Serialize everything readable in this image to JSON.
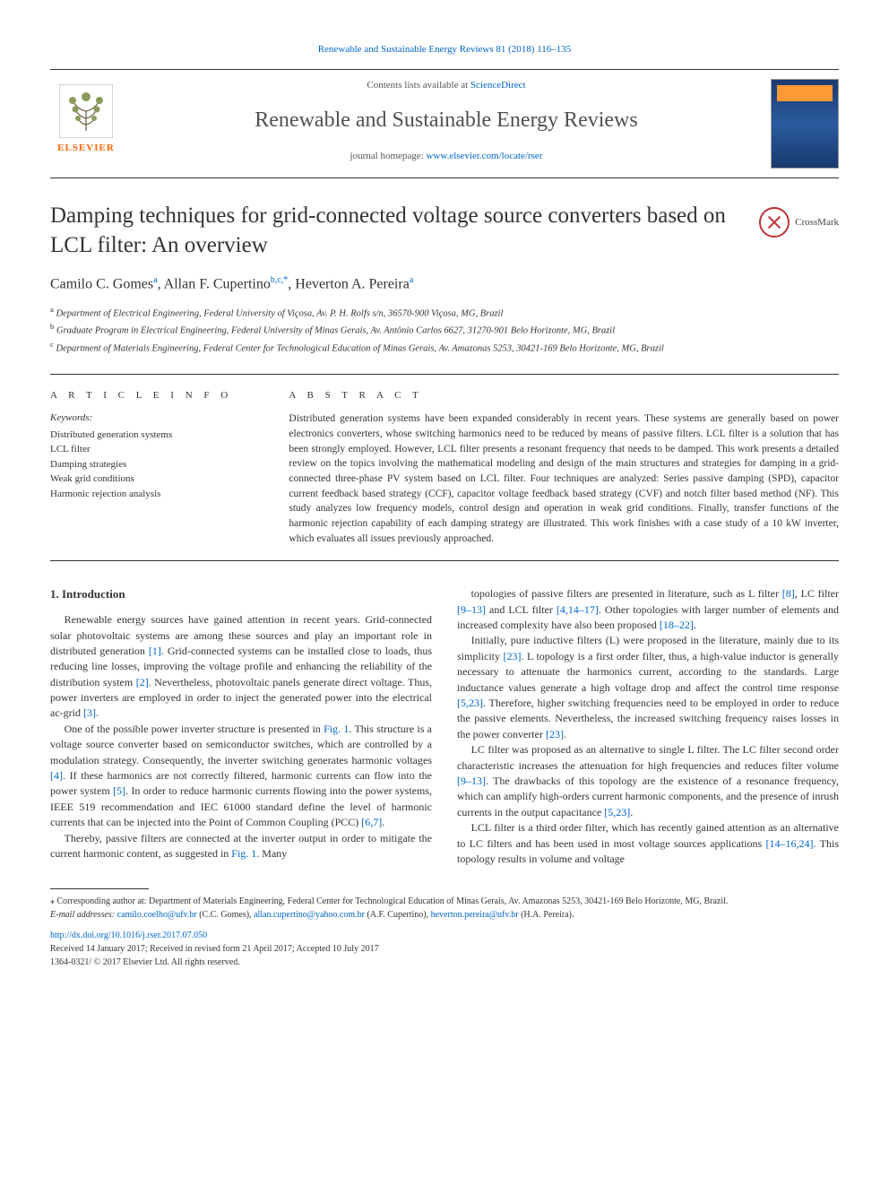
{
  "colors": {
    "link": "#0066cc",
    "text": "#333333",
    "elsevier_orange": "#ff6600",
    "crossmark_red": "#bb3333",
    "background": "#ffffff"
  },
  "typography": {
    "body_family": "Georgia, 'Times New Roman', serif",
    "title_size_pt": 25,
    "journal_size_pt": 24,
    "authors_size_pt": 16,
    "body_size_pt": 12,
    "abstract_size_pt": 11.5,
    "footnote_size_pt": 10
  },
  "header": {
    "citation": "Renewable and Sustainable Energy Reviews 81 (2018) 116–135",
    "contents_prefix": "Contents lists available at ",
    "contents_link": "ScienceDirect",
    "journal_name": "Renewable and Sustainable Energy Reviews",
    "homepage_prefix": "journal homepage: ",
    "homepage_link": "www.elsevier.com/locate/rser",
    "publisher_label": "ELSEVIER"
  },
  "crossmark": {
    "label": "CrossMark"
  },
  "article": {
    "title": "Damping techniques for grid-connected voltage source converters based on LCL filter: An overview",
    "authors_html": "Camilo C. Gomes<sup>a</sup>, Allan F. Cupertino<sup>b,c,*</sup>, Heverton A. Pereira<sup>a</sup>",
    "affiliations": [
      {
        "sup": "a",
        "text": "Department of Electrical Engineering, Federal University of Viçosa, Av. P. H. Rolfs s/n, 36570-900 Viçosa, MG, Brazil"
      },
      {
        "sup": "b",
        "text": "Graduate Program in Electrical Engineering, Federal University of Minas Gerais, Av. Antônio Carlos 6627, 31270-901 Belo Horizonte, MG, Brazil"
      },
      {
        "sup": "c",
        "text": "Department of Materials Engineering, Federal Center for Technological Education of Minas Gerais, Av. Amazonas 5253, 30421-169 Belo Horizonte, MG, Brazil"
      }
    ]
  },
  "info": {
    "article_info_heading": "A R T I C L E  I N F O",
    "abstract_heading": "A B S T R A C T",
    "keywords_label": "Keywords:",
    "keywords": [
      "Distributed generation systems",
      "LCL filter",
      "Damping strategies",
      "Weak grid conditions",
      "Harmonic rejection analysis"
    ],
    "abstract": "Distributed generation systems have been expanded considerably in recent years. These systems are generally based on power electronics converters, whose switching harmonics need to be reduced by means of passive filters. LCL filter is a solution that has been strongly employed. However, LCL filter presents a resonant frequency that needs to be damped. This work presents a detailed review on the topics involving the mathematical modeling and design of the main structures and strategies for damping in a grid-connected three-phase PV system based on LCL filter. Four techniques are analyzed: Series passive damping (SPD), capacitor current feedback based strategy (CCF), capacitor voltage feedback based strategy (CVF) and notch filter based method (NF). This study analyzes low frequency models, control design and operation in weak grid conditions. Finally, transfer functions of the harmonic rejection capability of each damping strategy are illustrated. This work finishes with a case study of a 10 kW inverter, which evaluates all issues previously approached."
  },
  "body": {
    "section_heading": "1. Introduction",
    "left_paragraphs": [
      "Renewable energy sources have gained attention in recent years. Grid-connected solar photovoltaic systems are among these sources and play an important role in distributed generation <span class='ref-link'>[1]</span>. Grid-connected systems can be installed close to loads, thus reducing line losses, improving the voltage profile and enhancing the reliability of the distribution system <span class='ref-link'>[2]</span>. Nevertheless, photovoltaic panels generate direct voltage. Thus, power inverters are employed in order to inject the generated power into the electrical ac-grid <span class='ref-link'>[3]</span>.",
      "One of the possible power inverter structure is presented in <span class='fig-link'>Fig. 1</span>. This structure is a voltage source converter based on semiconductor switches, which are controlled by a modulation strategy. Consequently, the inverter switching generates harmonic voltages <span class='ref-link'>[4]</span>. If these harmonics are not correctly filtered, harmonic currents can flow into the power system <span class='ref-link'>[5]</span>. In order to reduce harmonic currents flowing into the power systems, IEEE 519 recommendation and IEC 61000 standard define the level of harmonic currents that can be injected into the Point of Common Coupling (PCC) <span class='ref-link'>[6,7]</span>.",
      "Thereby, passive filters are connected at the inverter output in order to mitigate the current harmonic content, as suggested in <span class='fig-link'>Fig. 1</span>. Many"
    ],
    "right_paragraphs": [
      "topologies of passive filters are presented in literature, such as L filter <span class='ref-link'>[8]</span>, LC filter <span class='ref-link'>[9–13]</span> and LCL filter <span class='ref-link'>[4,14–17]</span>. Other topologies with larger number of elements and increased complexity have also been proposed <span class='ref-link'>[18–22]</span>.",
      "Initially, pure inductive filters (L) were proposed in the literature, mainly due to its simplicity <span class='ref-link'>[23]</span>. L topology is a first order filter, thus, a high-value inductor is generally necessary to attenuate the harmonics current, according to the standards. Large inductance values generate a high voltage drop and affect the control time response <span class='ref-link'>[5,23]</span>. Therefore, higher switching frequencies need to be employed in order to reduce the passive elements. Nevertheless, the increased switching frequency raises losses in the power converter <span class='ref-link'>[23]</span>.",
      "LC filter was proposed as an alternative to single L filter. The LC filter second order characteristic increases the attenuation for high frequencies and reduces filter volume <span class='ref-link'>[9–13]</span>. The drawbacks of this topology are the existence of a resonance frequency, which can amplify high-orders current harmonic components, and the presence of inrush currents in the output capacitance <span class='ref-link'>[5,23]</span>.",
      "LCL filter is a third order filter, which has recently gained attention as an alternative to LC filters and has been used in most voltage sources applications <span class='ref-link'>[14–16,24]</span>. This topology results in volume and voltage"
    ]
  },
  "footer": {
    "corresponding": "⁎ Corresponding author at: Department of Materials Engineering, Federal Center for Technological Education of Minas Gerais, Av. Amazonas 5253, 30421-169 Belo Horizonte, MG, Brazil.",
    "emails_label": "E-mail addresses: ",
    "emails": [
      {
        "addr": "camilo.coelho@ufv.br",
        "who": "(C.C. Gomes)"
      },
      {
        "addr": "allan.cupertino@yahoo.com.br",
        "who": "(A.F. Cupertino)"
      },
      {
        "addr": "heverton.pereira@ufv.br",
        "who": "(H.A. Pereira)."
      }
    ],
    "doi": "http://dx.doi.org/10.1016/j.rser.2017.07.050",
    "dates": "Received 14 January 2017; Received in revised form 21 April 2017; Accepted 10 July 2017",
    "copyright": "1364-0321/ © 2017 Elsevier Ltd. All rights reserved."
  }
}
